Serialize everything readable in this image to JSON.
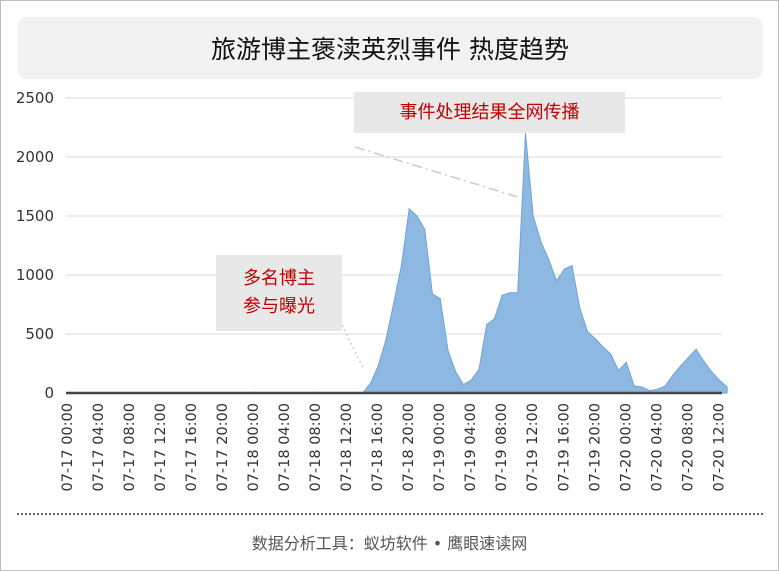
{
  "title": "旅游博主褒渎英烈事件 热度趋势",
  "footer": "数据分析工具：蚁坊软件 • 鹰眼速读网",
  "annotations": {
    "result": "事件处理结果全网传播",
    "exposure_line1": "多名博主",
    "exposure_line2": "参与曝光"
  },
  "colors": {
    "area_fill": "#8db8e2",
    "area_stroke": "#6fa3d6",
    "annotation_text": "#c00000",
    "grid": "#d9d9d9"
  },
  "chart_data": {
    "type": "area",
    "title": "旅游博主褒渎英烈事件 热度趋势",
    "xlabel": "",
    "ylabel": "",
    "ylim": [
      0,
      2500
    ],
    "yticks": [
      0,
      500,
      1000,
      1500,
      2000,
      2500
    ],
    "grid": true,
    "x_tick_labels": [
      "07-17 00:00",
      "07-17 04:00",
      "07-17 08:00",
      "07-17 12:00",
      "07-17 16:00",
      "07-17 20:00",
      "07-18 00:00",
      "07-18 04:00",
      "07-18 08:00",
      "07-18 12:00",
      "07-18 16:00",
      "07-18 20:00",
      "07-19 00:00",
      "07-19 04:00",
      "07-19 08:00",
      "07-19 12:00",
      "07-19 16:00",
      "07-19 20:00",
      "07-20 00:00",
      "07-20 04:00",
      "07-20 08:00",
      "07-20 12:00"
    ],
    "x_hours_per_tick": 4,
    "series": [
      {
        "values": [
          0,
          0,
          0,
          0,
          0,
          0,
          0,
          0,
          0,
          0,
          0,
          0,
          0,
          0,
          0,
          0,
          0,
          0,
          0,
          0,
          0,
          0,
          0,
          0,
          0,
          0,
          0,
          0,
          0,
          0,
          0,
          0,
          0,
          0,
          0,
          0,
          0,
          0,
          0,
          0,
          0,
          0,
          0,
          0,
          0,
          0,
          0,
          0,
          5,
          3,
          0,
          0,
          0,
          0,
          0,
          0,
          0,
          0,
          0,
          0,
          2,
          5,
          3,
          2,
          0,
          0,
          0,
          0,
          0,
          0,
          0,
          0,
          0,
          0,
          0,
          0,
          0,
          0,
          0,
          0,
          0,
          0,
          50,
          100,
          0,
          5,
          0,
          0,
          10,
          5,
          0,
          0,
          0,
          0,
          5,
          0,
          0,
          0,
          5,
          0,
          0,
          0,
          0,
          0,
          0,
          0,
          5,
          5,
          10,
          5,
          0,
          5,
          0,
          0,
          0,
          0,
          0,
          0,
          0,
          0,
          0,
          0,
          0,
          0,
          0,
          0,
          0,
          0,
          0,
          0,
          0,
          0,
          0,
          0,
          0,
          0,
          0,
          0,
          0,
          0,
          0,
          0,
          0,
          0,
          0,
          0,
          0,
          0,
          0,
          0,
          0,
          0,
          0,
          0,
          0,
          0,
          0,
          0,
          0,
          0,
          0,
          0,
          0,
          0,
          0,
          0,
          0,
          0,
          0,
          0,
          0,
          0,
          0,
          0,
          0,
          0,
          0,
          0,
          0,
          0,
          0,
          0,
          0,
          0,
          0,
          0,
          0,
          0,
          0,
          0,
          0,
          0,
          0,
          0,
          0,
          0,
          0,
          0,
          0,
          0,
          0,
          0,
          0,
          0,
          0,
          0,
          0,
          0,
          0,
          0,
          0,
          0,
          0,
          0,
          0,
          0,
          0,
          0,
          0,
          0,
          0,
          0,
          0,
          0,
          0,
          0,
          0,
          0,
          0,
          0,
          0,
          0,
          0,
          0,
          0,
          0,
          0,
          0,
          0,
          0,
          0,
          0,
          0,
          0,
          0,
          0,
          0,
          0,
          0,
          0,
          0,
          0,
          0,
          0,
          0,
          0,
          0,
          0,
          0,
          0,
          0,
          0,
          0,
          0,
          0,
          0,
          0,
          0,
          0,
          0,
          0,
          0,
          0,
          0,
          0,
          0,
          0,
          0,
          0,
          0,
          0,
          0,
          0,
          0,
          0,
          0,
          0,
          0,
          0,
          0,
          0,
          0,
          0,
          0,
          0,
          0,
          0,
          0,
          0,
          0,
          0,
          0,
          0,
          0,
          0,
          0,
          0,
          0,
          0,
          0,
          0,
          0,
          0,
          0,
          0,
          0,
          0,
          0,
          0,
          0,
          0,
          0,
          0,
          0,
          0,
          0,
          0,
          0,
          0,
          0,
          0,
          0,
          0,
          0,
          0,
          0,
          0,
          0,
          0,
          0,
          0,
          0,
          0,
          0,
          0,
          0,
          0,
          0,
          0,
          0,
          0,
          0,
          0,
          0,
          0,
          0,
          0,
          0,
          0,
          0,
          0,
          0,
          0,
          0,
          0,
          0,
          0,
          0,
          0,
          0,
          0,
          0,
          0,
          0,
          0,
          0,
          0,
          0,
          0,
          0,
          0,
          0,
          0,
          0,
          0,
          0,
          0,
          0,
          0,
          0,
          0,
          0,
          0,
          0,
          0,
          0,
          0,
          0,
          0,
          0,
          0,
          0,
          0,
          0,
          0,
          0,
          0,
          0,
          0,
          0,
          0,
          0,
          0,
          0,
          0,
          0,
          0,
          0,
          0,
          0,
          0,
          0,
          0,
          0,
          0,
          0,
          0,
          0,
          0,
          0,
          0,
          0,
          0,
          0,
          0,
          0,
          0,
          0,
          0,
          0,
          0,
          0,
          0,
          0,
          0,
          0,
          0,
          0,
          0,
          0,
          0,
          0,
          0,
          0,
          0,
          0,
          0,
          0,
          0,
          0,
          0,
          0,
          0,
          0,
          0,
          0,
          0,
          0,
          0,
          0,
          0,
          0,
          0,
          0,
          0,
          0,
          0,
          0,
          0,
          0,
          0,
          0,
          0,
          0,
          0,
          0,
          0,
          0,
          0,
          0,
          0,
          0,
          0,
          0,
          0,
          0,
          0,
          0,
          0,
          0,
          0,
          0,
          0,
          0,
          0,
          0,
          0,
          0,
          0,
          0,
          0,
          0,
          0,
          0,
          0,
          0,
          0,
          0,
          0,
          0,
          0,
          0,
          0,
          0,
          0,
          0,
          0,
          0,
          0,
          0,
          0,
          0,
          0,
          0,
          0,
          0,
          0,
          0,
          0,
          0,
          0,
          0,
          0,
          0,
          0,
          0,
          0,
          0,
          0,
          0,
          0,
          0,
          0,
          0,
          0,
          0,
          0,
          0,
          0,
          0,
          0,
          0,
          0,
          0,
          0,
          0,
          0,
          0,
          0,
          0,
          0,
          0,
          0,
          0,
          0,
          0,
          0,
          0,
          0,
          0
        ],
        "points": [
          {
            "x": "07-17 00:00",
            "y": 0
          },
          {
            "x": "07-17 20:00",
            "y": 0
          },
          {
            "x": "07-18 00:00",
            "y": 5
          },
          {
            "x": "07-18 04:00",
            "y": 0
          },
          {
            "x": "07-18 08:00",
            "y": 5
          },
          {
            "x": "07-18 12:00",
            "y": 0
          },
          {
            "x": "07-18 14:00",
            "y": 0
          },
          {
            "x": "07-18 15:00",
            "y": 80
          },
          {
            "x": "07-18 16:00",
            "y": 230
          },
          {
            "x": "07-18 17:00",
            "y": 450
          },
          {
            "x": "07-18 18:00",
            "y": 760
          },
          {
            "x": "07-18 19:00",
            "y": 1080
          },
          {
            "x": "07-18 20:00",
            "y": 1560
          },
          {
            "x": "07-18 21:00",
            "y": 1500
          },
          {
            "x": "07-18 22:00",
            "y": 1390
          },
          {
            "x": "07-18 23:00",
            "y": 840
          },
          {
            "x": "07-19 00:00",
            "y": 800
          },
          {
            "x": "07-19 01:00",
            "y": 360
          },
          {
            "x": "07-19 02:00",
            "y": 180
          },
          {
            "x": "07-19 03:00",
            "y": 70
          },
          {
            "x": "07-19 04:00",
            "y": 110
          },
          {
            "x": "07-19 05:00",
            "y": 200
          },
          {
            "x": "07-19 06:00",
            "y": 580
          },
          {
            "x": "07-19 07:00",
            "y": 630
          },
          {
            "x": "07-19 08:00",
            "y": 830
          },
          {
            "x": "07-19 09:00",
            "y": 850
          },
          {
            "x": "07-19 10:00",
            "y": 850
          },
          {
            "x": "07-19 11:00",
            "y": 2200
          },
          {
            "x": "07-19 12:00",
            "y": 1500
          },
          {
            "x": "07-19 13:00",
            "y": 1280
          },
          {
            "x": "07-19 14:00",
            "y": 1130
          },
          {
            "x": "07-19 15:00",
            "y": 950
          },
          {
            "x": "07-19 16:00",
            "y": 1050
          },
          {
            "x": "07-19 17:00",
            "y": 1080
          },
          {
            "x": "07-19 18:00",
            "y": 720
          },
          {
            "x": "07-19 19:00",
            "y": 520
          },
          {
            "x": "07-19 20:00",
            "y": 460
          },
          {
            "x": "07-19 21:00",
            "y": 390
          },
          {
            "x": "07-19 22:00",
            "y": 330
          },
          {
            "x": "07-19 23:00",
            "y": 190
          },
          {
            "x": "07-20 00:00",
            "y": 260
          },
          {
            "x": "07-20 01:00",
            "y": 60
          },
          {
            "x": "07-20 02:00",
            "y": 50
          },
          {
            "x": "07-20 03:00",
            "y": 20
          },
          {
            "x": "07-20 04:00",
            "y": 30
          },
          {
            "x": "07-20 05:00",
            "y": 60
          },
          {
            "x": "07-20 06:00",
            "y": 150
          },
          {
            "x": "07-20 07:00",
            "y": 230
          },
          {
            "x": "07-20 08:00",
            "y": 300
          },
          {
            "x": "07-20 09:00",
            "y": 370
          },
          {
            "x": "07-20 10:00",
            "y": 270
          },
          {
            "x": "07-20 11:00",
            "y": 180
          },
          {
            "x": "07-20 12:00",
            "y": 110
          },
          {
            "x": "07-20 13:00",
            "y": 50
          }
        ]
      }
    ]
  }
}
